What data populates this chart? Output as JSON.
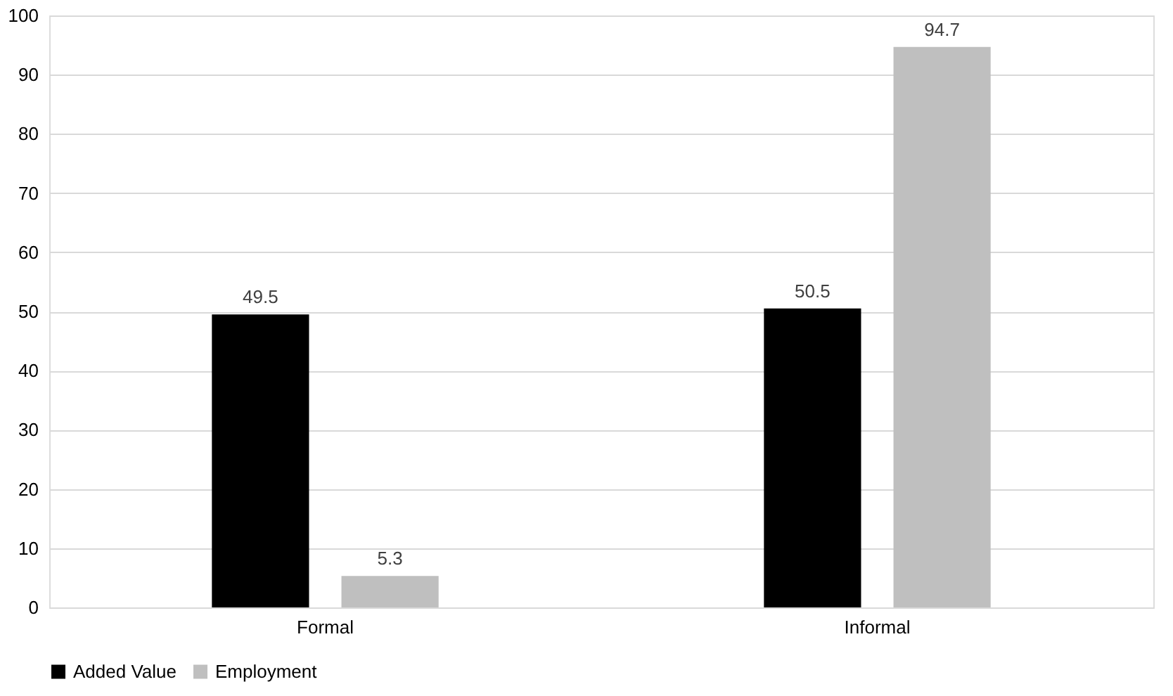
{
  "chart_data": {
    "type": "bar",
    "categories": [
      "Formal",
      "Informal"
    ],
    "series": [
      {
        "name": "Added Value",
        "color": "#000000",
        "values": [
          49.5,
          50.5
        ]
      },
      {
        "name": "Employment",
        "color": "#bfbfbf",
        "values": [
          5.3,
          94.7
        ]
      }
    ],
    "ylim": [
      0,
      100
    ],
    "yticks": [
      0,
      10,
      20,
      30,
      40,
      50,
      60,
      70,
      80,
      90,
      100
    ],
    "grid": "y",
    "legend": "bottom",
    "data_labels": true
  }
}
